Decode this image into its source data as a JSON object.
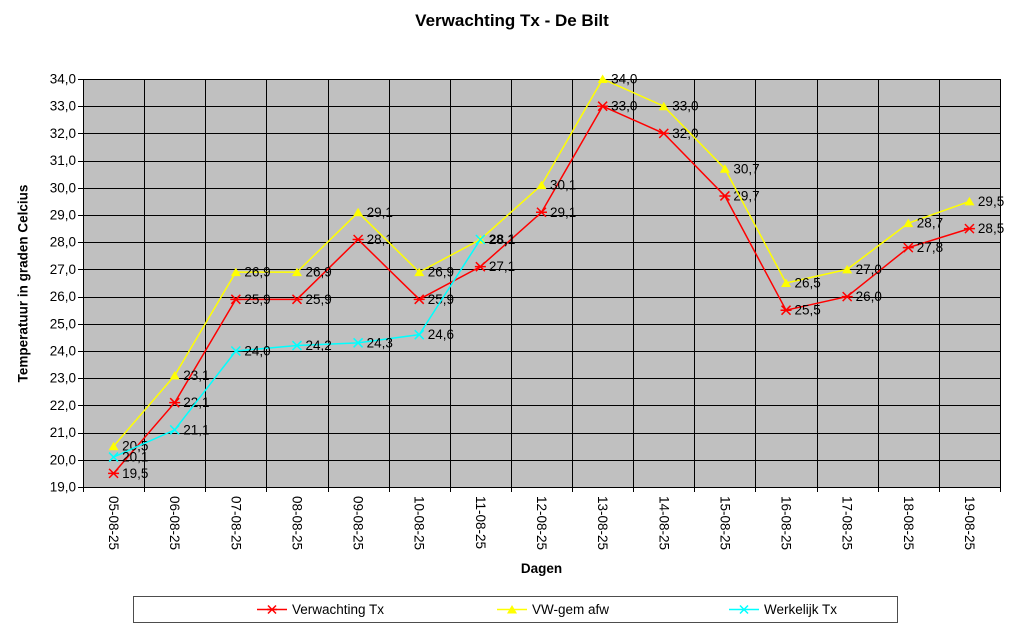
{
  "chart_data": {
    "type": "line",
    "title": "Verwachting Tx - De Bilt",
    "xlabel": "Dagen",
    "ylabel": "Temperatuur in graden Celcius",
    "ylim": [
      19.0,
      34.0
    ],
    "ytick_step": 1.0,
    "decimal_separator": ",",
    "grid": true,
    "legend_position": "bottom",
    "plot_bg_color": "#C0C0C0",
    "gridline_color": "#000000",
    "categories": [
      "05-08-25",
      "06-08-25",
      "07-08-25",
      "08-08-25",
      "09-08-25",
      "10-08-25",
      "11-08-25",
      "12-08-25",
      "13-08-25",
      "14-08-25",
      "15-08-25",
      "16-08-25",
      "17-08-25",
      "18-08-25",
      "19-08-25"
    ],
    "series": [
      {
        "name": "Verwachting Tx",
        "color": "#FF0000",
        "marker": "star",
        "values": [
          19.5,
          22.1,
          25.9,
          25.9,
          28.1,
          25.9,
          27.1,
          29.1,
          33.0,
          32.0,
          29.7,
          25.5,
          26.0,
          27.8,
          28.5
        ]
      },
      {
        "name": "VW-gem afw",
        "color": "#FFFF00",
        "marker": "triangle",
        "values": [
          20.5,
          23.1,
          26.9,
          26.9,
          29.1,
          26.9,
          28.1,
          30.1,
          34.0,
          33.0,
          30.7,
          26.5,
          27.0,
          28.7,
          29.5
        ]
      },
      {
        "name": "Werkelijk Tx",
        "color": "#00FFFF",
        "marker": "x",
        "values": [
          20.1,
          21.1,
          24.0,
          24.2,
          24.3,
          24.6,
          28.1,
          null,
          null,
          null,
          null,
          null,
          null,
          null,
          null
        ]
      }
    ]
  }
}
